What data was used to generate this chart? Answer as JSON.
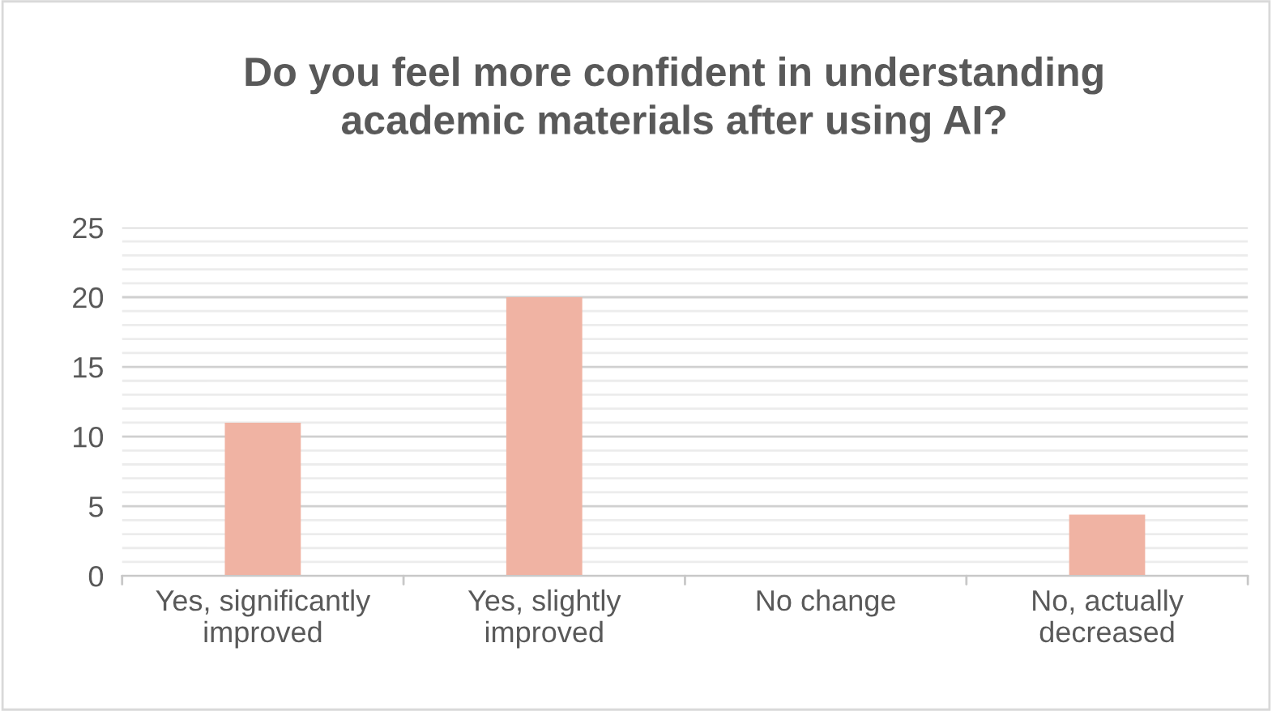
{
  "chart_data": {
    "type": "bar",
    "title": "Do you feel more confident in understanding\nacademic materials after using AI?",
    "categories": [
      "Yes, significantly\nimproved",
      "Yes, slightly\nimproved",
      "No change",
      "No, actually\ndecreased"
    ],
    "values": [
      11,
      20,
      0,
      4.4
    ],
    "color": "#f0b3a3",
    "ylim": [
      0,
      25
    ],
    "yticks": [
      0,
      {
        "value": 1,
        "label": null
      },
      {
        "value": 2,
        "label": null
      },
      {
        "value": 3,
        "label": null
      },
      {
        "value": 4,
        "label": null
      },
      5,
      {
        "value": 6,
        "label": null
      },
      {
        "value": 7,
        "label": null
      },
      {
        "value": 8,
        "label": null
      },
      {
        "value": 9,
        "label": null
      },
      10,
      {
        "value": 11,
        "label": null
      },
      {
        "value": 12,
        "label": null
      },
      {
        "value": 13,
        "label": null
      },
      {
        "value": 14,
        "label": null
      },
      15,
      {
        "value": 16,
        "label": null
      },
      {
        "value": 17,
        "label": null
      },
      {
        "value": 18,
        "label": null
      },
      {
        "value": 19,
        "label": null
      },
      20,
      {
        "value": 21,
        "label": null
      },
      {
        "value": 22,
        "label": null
      },
      {
        "value": 23,
        "label": null
      },
      {
        "value": 24,
        "label": null
      },
      25
    ],
    "grid": "y",
    "legend": false
  }
}
